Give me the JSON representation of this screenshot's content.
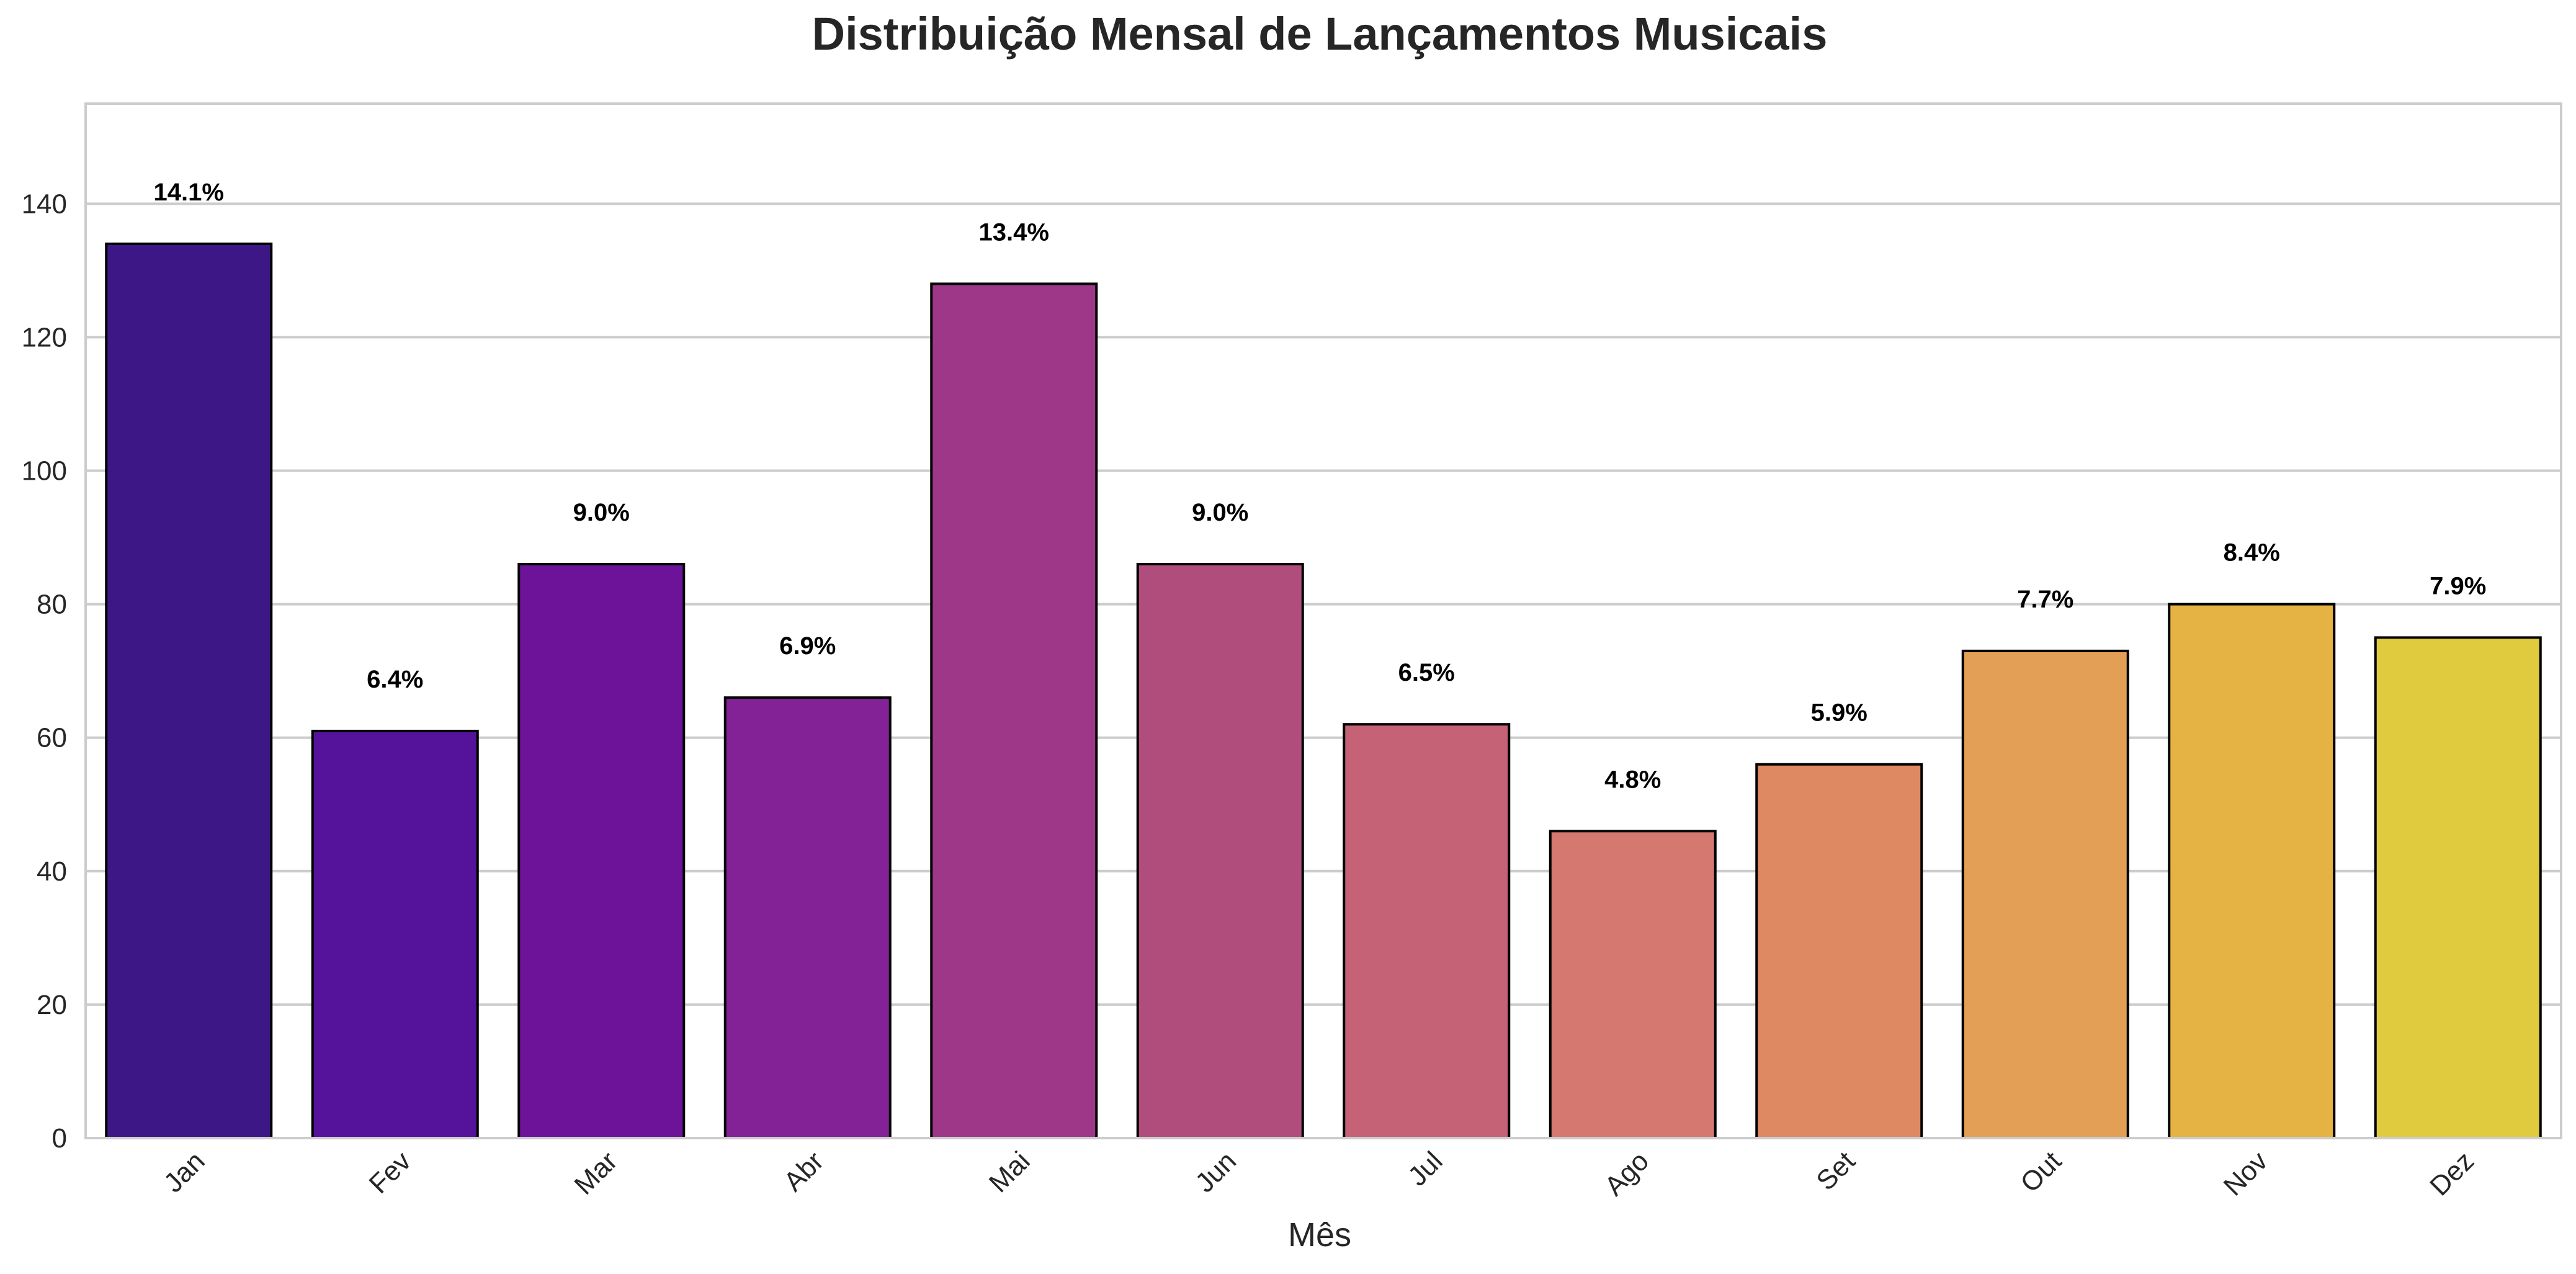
{
  "chart_data": {
    "type": "bar",
    "title": "Distribuição Mensal de Lançamentos Musicais",
    "xlabel": "Mês",
    "ylabel": "",
    "categories": [
      "Jan",
      "Fev",
      "Mar",
      "Abr",
      "Mai",
      "Jun",
      "Jul",
      "Ago",
      "Set",
      "Out",
      "Nov",
      "Dez"
    ],
    "values": [
      134,
      61,
      86,
      66,
      128,
      86,
      62,
      46,
      56,
      73,
      80,
      75
    ],
    "data_labels": [
      "14.1%",
      "6.4%",
      "9.0%",
      "6.9%",
      "13.4%",
      "9.0%",
      "6.5%",
      "4.8%",
      "5.9%",
      "7.7%",
      "8.4%",
      "7.9%"
    ],
    "colors": [
      "#3d1786",
      "#54139a",
      "#6d139a",
      "#832296",
      "#9e3787",
      "#b04d7d",
      "#c56276",
      "#d5786f",
      "#df8962",
      "#e39f55",
      "#e5b244",
      "#e0cb3e"
    ],
    "yticks": [
      "0",
      "20",
      "40",
      "60",
      "80",
      "100",
      "120",
      "140"
    ],
    "ylim": [
      0,
      155
    ],
    "grid": "horizontal",
    "legend": "none",
    "bar_edge_color": "#000000"
  }
}
